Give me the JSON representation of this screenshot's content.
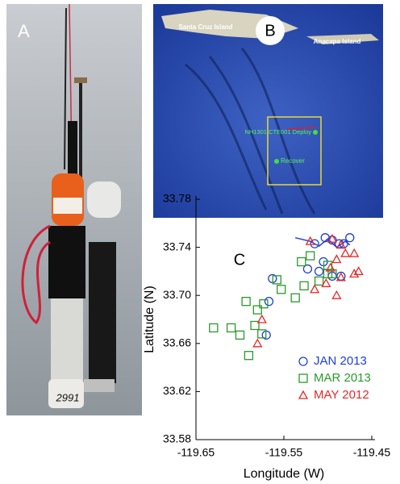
{
  "panel_a": {
    "label": "A",
    "tag": "2991"
  },
  "panel_b": {
    "label": "B",
    "island_west": "Santa Cruz Island",
    "island_east": "Anacapa Island",
    "deploy": "NH1301 CTE001 Deploy",
    "recover": "Recover"
  },
  "chart_data": {
    "type": "scatter",
    "title": "C",
    "x_label": "Longitude (W)",
    "y_label": "Latitude (N)",
    "xlim": [
      -119.65,
      -119.45
    ],
    "xticks": [
      -119.65,
      -119.55,
      -119.45
    ],
    "ylim": [
      33.58,
      33.78
    ],
    "yticks": [
      33.58,
      33.62,
      33.66,
      {
        "value": 33.7,
        "label": "33.70"
      },
      33.74,
      33.78
    ],
    "track": {
      "color": "#1f3fd8",
      "x": [
        -119.537,
        -119.52,
        -119.51,
        -119.5,
        -119.49,
        -119.48,
        -119.475
      ],
      "y": [
        33.748,
        33.745,
        33.741,
        33.747,
        33.74,
        33.745,
        33.742
      ]
    },
    "series": [
      {
        "name": "JAN 2013",
        "color": "#1f3fd8",
        "marker": "circle",
        "x": [
          -119.567,
          -119.57,
          -119.563,
          -119.515,
          -119.523,
          -119.487,
          -119.482,
          -119.503,
          -119.495,
          -119.505,
          -119.495,
          -119.485,
          -119.475,
          -119.51
        ],
        "values": [
          33.695,
          33.667,
          33.714,
          33.743,
          33.722,
          33.743,
          33.743,
          33.748,
          33.746,
          33.728,
          33.716,
          33.716,
          33.748,
          33.72
        ]
      },
      {
        "name": "MAR 2013",
        "color": "#2a9a2a",
        "marker": "square",
        "x": [
          -119.61,
          -119.593,
          -119.58,
          -119.573,
          -119.583,
          -119.6,
          -119.553,
          -119.537,
          -119.527,
          -119.51,
          -119.5,
          -119.495,
          -119.558,
          -119.52,
          -119.53,
          -119.63,
          -119.59,
          -119.5,
          -119.575
        ],
        "values": [
          33.673,
          33.695,
          33.688,
          33.693,
          33.675,
          33.667,
          33.705,
          33.698,
          33.708,
          33.712,
          33.718,
          33.718,
          33.713,
          33.733,
          33.728,
          33.673,
          33.65,
          33.725,
          33.668
        ]
      },
      {
        "name": "MAY 2012",
        "color": "#e8282a",
        "marker": "triangle",
        "x": [
          -119.495,
          -119.485,
          -119.48,
          -119.49,
          -119.47,
          -119.485,
          -119.47,
          -119.465,
          -119.49,
          -119.515,
          -119.502,
          -119.58,
          -119.575,
          -119.52,
          -119.497
        ],
        "values": [
          33.747,
          33.742,
          33.735,
          33.73,
          33.735,
          33.715,
          33.718,
          33.72,
          33.7,
          33.705,
          33.71,
          33.66,
          33.68,
          33.745,
          33.723
        ]
      }
    ]
  }
}
